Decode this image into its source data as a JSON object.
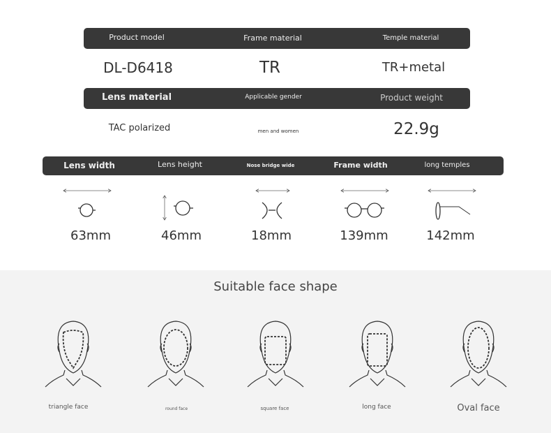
{
  "specs_row1": {
    "headers": [
      "Product model",
      "Frame material",
      "Temple material"
    ],
    "values": [
      "DL-D6418",
      "TR",
      "TR+metal"
    ]
  },
  "specs_row2": {
    "headers": [
      "Lens material",
      "Applicable gender",
      "Product weight"
    ],
    "values": [
      "TAC polarized",
      "men and women",
      "22.9g"
    ]
  },
  "dimensions": {
    "headers": [
      "Lens width",
      "Lens height",
      "Nose bridge wide",
      "Frame width",
      "long temples"
    ],
    "icons": [
      "lens-width-icon",
      "lens-height-icon",
      "nose-bridge-icon",
      "frame-width-icon",
      "temple-length-icon"
    ],
    "values": [
      "63mm",
      "46mm",
      "18mm",
      "139mm",
      "142mm"
    ]
  },
  "face_shapes": {
    "title": "Suitable face shape",
    "items": [
      {
        "label": "triangle face",
        "icon": "triangle-face-icon"
      },
      {
        "label": "round face",
        "icon": "round-face-icon"
      },
      {
        "label": "square face",
        "icon": "square-face-icon"
      },
      {
        "label": "long face",
        "icon": "long-face-icon"
      },
      {
        "label": "Oval face",
        "icon": "oval-face-icon"
      }
    ]
  },
  "colors": {
    "bar": "#383838",
    "bottom_bg": "#f3f3f3"
  }
}
